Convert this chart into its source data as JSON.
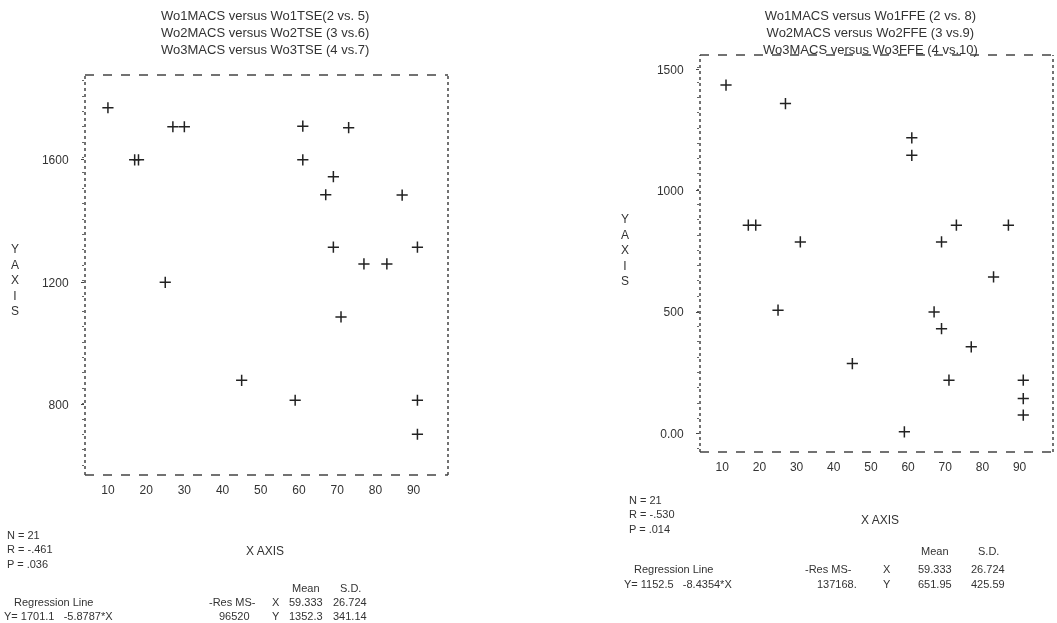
{
  "chart_data": [
    {
      "type": "scatter",
      "title": "Wo1MACS versus Wo1TSE(2 vs. 5)\nWo2MACS versus Wo2TSE (3 vs.6)\nWo3MACS versus Wo3TSE (4 vs.7)",
      "xlabel": "X AXIS",
      "ylabel": "YAXIS",
      "x": [
        10,
        27,
        30,
        61,
        73,
        17,
        18,
        61,
        69,
        67,
        87,
        69,
        91,
        77,
        83,
        25,
        71,
        45,
        59,
        91,
        91
      ],
      "values": [
        1770,
        1708,
        1708,
        1710,
        1705,
        1600,
        1600,
        1600,
        1545,
        1486,
        1485,
        1315,
        1315,
        1260,
        1260,
        1200,
        1087,
        880,
        815,
        815,
        704
      ],
      "color": "#222222",
      "marker": "cross",
      "grid": false,
      "legend": false,
      "xlim": [
        4,
        99
      ],
      "xticks": [
        10,
        20,
        30,
        40,
        50,
        60,
        70,
        80,
        90
      ],
      "ylim": [
        571,
        1877
      ],
      "yticks": [
        800,
        1200,
        1600
      ],
      "annotations": [
        "N = 21\nR = -.461\nP = .036",
        "Regression Line",
        "Y= 1701.1   -5.8787*X",
        "-Res MS-",
        "96520",
        "Mean",
        "S.D.",
        "X",
        "59.333",
        "26.724",
        "Y",
        "1352.3",
        "341.14"
      ]
    },
    {
      "type": "scatter",
      "title": "Wo1MACS versus Wo1FFE (2 vs. 8)\nWo2MACS versus Wo2FFE (3 vs.9)\nWo3MACS versus Wo3FFE (4 vs.10)",
      "xlabel": "X AXIS",
      "ylabel": "YAXIS",
      "x": [
        11,
        27,
        61,
        61,
        17,
        19,
        73,
        87,
        31,
        69,
        83,
        25,
        67,
        69,
        77,
        45,
        71,
        91,
        91,
        91,
        59
      ],
      "values": [
        1435,
        1359,
        1218,
        1146,
        858,
        858,
        858,
        858,
        789,
        789,
        645,
        508,
        501,
        432,
        357,
        288,
        220,
        220,
        144,
        76,
        7
      ],
      "color": "#222222",
      "marker": "cross",
      "grid": false,
      "legend": false,
      "xlim": [
        4,
        99
      ],
      "xticks": [
        10,
        20,
        30,
        40,
        50,
        60,
        70,
        80,
        90
      ],
      "ylim": [
        -76,
        1559
      ],
      "yticks": [
        {
          "value": 0,
          "label": "0.00"
        },
        500,
        1000,
        1500
      ],
      "annotations": [
        "N = 21\nR = -.530\nP = .014",
        "Regression Line",
        "Y= 1152.5   -8.4354*X",
        "-Res MS-",
        "137168.",
        "Mean",
        "S.D.",
        "X",
        "59.333",
        "26.724",
        "Y",
        "651.95",
        "425.59"
      ]
    }
  ]
}
